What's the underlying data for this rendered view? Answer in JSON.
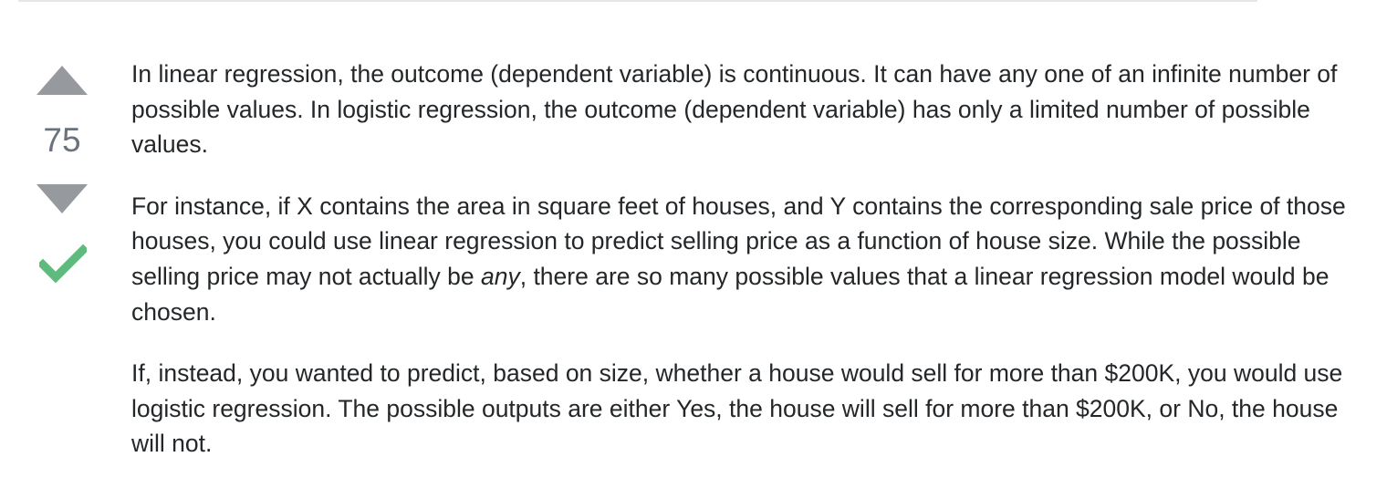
{
  "votes": {
    "score": "75",
    "upvote_icon": "upvote-triangle-icon",
    "downvote_icon": "downvote-triangle-icon",
    "accepted_icon": "checkmark-icon",
    "arrow_color": "#969a9e",
    "accepted_color": "#5eba7d",
    "score_color": "#6a737c"
  },
  "answer": {
    "paragraphs": [
      {
        "text": "In linear regression, the outcome (dependent variable) is continuous. It can have any one of an infinite number of possible values. In logistic regression, the outcome (dependent variable) has only a limited number of possible values."
      },
      {
        "before": "For instance, if X contains the area in square feet of houses, and Y contains the corresponding sale price of those houses, you could use linear regression to predict selling price as a function of house size. While the possible selling price may not actually be ",
        "emphasis": "any",
        "after": ", there are so many possible values that a linear regression model would be chosen."
      },
      {
        "text": "If, instead, you wanted to predict, based on size, whether a house would sell for more than $200K, you would use logistic regression. The possible outputs are either Yes, the house will sell for more than $200K, or No, the house will not."
      }
    ]
  }
}
